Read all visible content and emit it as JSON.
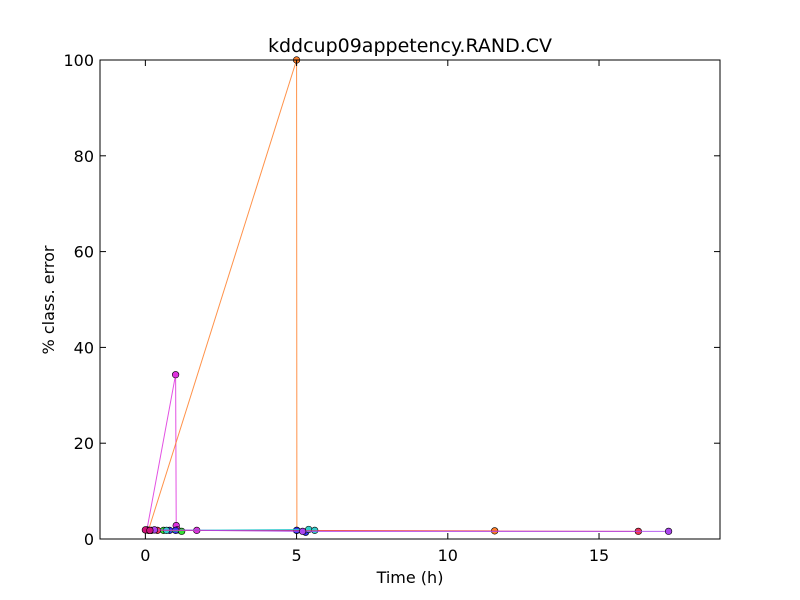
{
  "chart_data": {
    "type": "scatter",
    "title": "kddcup09appetency.RAND.CV",
    "xlabel": "Time (h)",
    "ylabel": "% class. error",
    "xlim": [
      -1.5,
      19
    ],
    "ylim": [
      0,
      100
    ],
    "xticks": [
      0,
      5,
      10,
      15
    ],
    "yticks": [
      0,
      20,
      40,
      60,
      80,
      100
    ],
    "grid": false,
    "series": [
      {
        "color": "#dd33dd",
        "x": [
          0.05,
          1.0,
          1.02,
          1.06,
          1.7
        ],
        "y": [
          1.9,
          34.3,
          2.8,
          1.9,
          1.8
        ]
      },
      {
        "color": "#ff7f2a",
        "x": [
          0.1,
          5.0,
          5.01,
          11.55
        ],
        "y": [
          1.8,
          100,
          1.8,
          1.7
        ]
      },
      {
        "color": "#3333ee",
        "x": [
          0.8,
          1.0,
          5.0,
          5.3
        ],
        "y": [
          1.8,
          1.8,
          1.8,
          1.4
        ]
      },
      {
        "color": "#33dd33",
        "x": [
          0.6,
          1.2
        ],
        "y": [
          1.8,
          1.6
        ]
      },
      {
        "color": "#33cccc",
        "x": [
          0.7,
          5.4,
          5.6
        ],
        "y": [
          1.8,
          2.0,
          1.8
        ]
      },
      {
        "color": "#ee3355",
        "x": [
          0.2,
          0.4,
          16.3
        ],
        "y": [
          1.8,
          1.8,
          1.6
        ]
      },
      {
        "color": "#aa44ee",
        "x": [
          0.3,
          5.2,
          17.3
        ],
        "y": [
          1.9,
          1.6,
          1.6
        ]
      },
      {
        "color": "#cc1177",
        "x": [
          0.0,
          0.15
        ],
        "y": [
          1.9,
          1.8
        ]
      }
    ]
  }
}
